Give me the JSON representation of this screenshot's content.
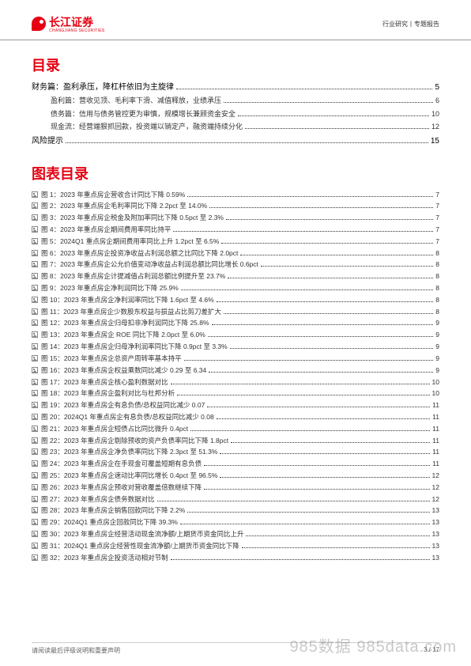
{
  "header": {
    "logo_main": "长江证券",
    "logo_sub": "CHANGJIANG SECURITIES",
    "right_text": "行业研究丨专题报告"
  },
  "toc_title": "目录",
  "toc": [
    {
      "level": 1,
      "label": "财务篇：盈利承压，降杠杆依旧为主旋律",
      "page": "5"
    },
    {
      "level": 2,
      "label": "盈利篇：营收见顶、毛利率下滑、减值释放，业绩承压",
      "page": "6"
    },
    {
      "level": 2,
      "label": "债务篇：信用与债务管控更为审慎，规模增长兼顾资金安全",
      "page": "10"
    },
    {
      "level": 2,
      "label": "现金流：经营端狠抓回款，投资端以销定产，融资端持续分化",
      "page": "12"
    },
    {
      "level": 1,
      "label": "风险提示",
      "page": "15"
    }
  ],
  "fig_title": "图表目录",
  "figs": [
    {
      "label": "图 1：2023 年重点房企营收合计同比下降 0.59%",
      "page": "7"
    },
    {
      "label": "图 2：2023 年重点房企毛利率同比下降 2.2pct 至 14.0%",
      "page": "7"
    },
    {
      "label": "图 3：2023 年重点房企税金及附加率同比下降 0.5pct 至 2.3%",
      "page": "7"
    },
    {
      "label": "图 4：2023 年重点房企期间费用率同比持平",
      "page": "7"
    },
    {
      "label": "图 5：2024Q1 重点房企期间费用率同比上升 1.2pct 至 6.5%",
      "page": "7"
    },
    {
      "label": "图 6：2023 年重点房企投资净收益占利润总额之比同比下降 2.0pct",
      "page": "8"
    },
    {
      "label": "图 7：2023 年重点房企公允价值变动净收益占利润总额比同比增长 0.6pct",
      "page": "8"
    },
    {
      "label": "图 8：2023 年重点房企计提减值占利润总额比例提升至 23.7%",
      "page": "8"
    },
    {
      "label": "图 9：2023 年重点房企净利润同比下降 25.9%",
      "page": "8"
    },
    {
      "label": "图 10：2023 年重点房企净利润率同比下降 1.6pct 至 4.6%",
      "page": "8"
    },
    {
      "label": "图 11：2023 年重点房企少数股东权益与损益占比剪刀差扩大",
      "page": "8"
    },
    {
      "label": "图 12：2023 年重点房企归母扣非净利润同比下降 25.8%",
      "page": "9"
    },
    {
      "label": "图 13：2023 年重点房企 ROE 同比下降 2.0pct 至 6.0%",
      "page": "9"
    },
    {
      "label": "图 14：2023 年重点房企归母净利润率同比下降 0.9pct 至 3.3%",
      "page": "9"
    },
    {
      "label": "图 15：2023 年重点房企总资产周转率基本持平",
      "page": "9"
    },
    {
      "label": "图 16：2023 年重点房企权益乘数同比减少 0.29 至 6.34",
      "page": "9"
    },
    {
      "label": "图 17：2023 年重点房企核心盈利数据对比",
      "page": "10"
    },
    {
      "label": "图 18：2023 年重点房企盈利对比与杜邦分析",
      "page": "10"
    },
    {
      "label": "图 19：2023 年重点房企有息负债/总权益同比减少 0.07",
      "page": "11"
    },
    {
      "label": "图 20：2024Q1 年重点房企有息负债/总权益同比减少 0.08",
      "page": "11"
    },
    {
      "label": "图 21：2023 年重点房企短债占比同比微升 0.4pct",
      "page": "11"
    },
    {
      "label": "图 22：2023 年重点房企剔除预收的资产负债率同比下降 1.8pct",
      "page": "11"
    },
    {
      "label": "图 23：2023 年重点房企净负债率同比下降 2.3pct 至 51.3%",
      "page": "11"
    },
    {
      "label": "图 24：2023 年重点房企在手现金可覆盖短期有息负债",
      "page": "11"
    },
    {
      "label": "图 25：2023 年重点房企速动比率同比增长 0.4pct 至 96.5%",
      "page": "12"
    },
    {
      "label": "图 26：2023 年重点房企预收对营收覆盖倍数继续下降",
      "page": "12"
    },
    {
      "label": "图 27：2023 年重点房企债务数据对比",
      "page": "12"
    },
    {
      "label": "图 28：2023 年重点房企销售回款同比下降 2.2%",
      "page": "13"
    },
    {
      "label": "图 29：2024Q1 重点房企回款同比下降 39.3%",
      "page": "13"
    },
    {
      "label": "图 30：2023 年重点房企经营活动现金流净额/上期货币资金同比上升",
      "page": "13"
    },
    {
      "label": "图 31：2024Q1 重点房企经营性现金流净额/上期货币资金同比下降",
      "page": "13"
    },
    {
      "label": "图 32：2023 年重点房企投资活动相对节制",
      "page": "13"
    }
  ],
  "footer": {
    "left": "请阅读最后评级说明和重要声明",
    "right": "3 / 17"
  },
  "watermark": "985数据  985data.com"
}
